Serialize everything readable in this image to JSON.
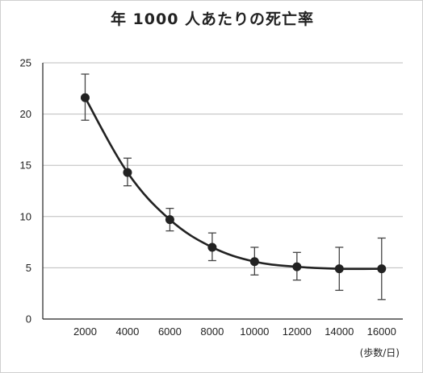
{
  "chart_data": {
    "type": "line",
    "title": "年 1000 人あたりの死亡率",
    "xlabel": "(歩数/日)",
    "ylabel": "",
    "x": [
      2000,
      4000,
      6000,
      8000,
      10000,
      12000,
      14000,
      16000
    ],
    "x_tick_labels": [
      "2000",
      "4000",
      "6000",
      "8000",
      "10000",
      "12000",
      "14000",
      "16000"
    ],
    "xlim": [
      0,
      17000
    ],
    "ylim": [
      0,
      25
    ],
    "y_ticks": [
      0,
      5,
      10,
      15,
      20,
      25
    ],
    "y_tick_labels": [
      "0",
      "5",
      "10",
      "15",
      "20",
      "25"
    ],
    "grid": true,
    "series": [
      {
        "values": [
          21.6,
          14.3,
          9.7,
          7.0,
          5.6,
          5.1,
          4.9,
          4.9
        ],
        "error_low": [
          19.4,
          13.0,
          8.6,
          5.7,
          4.3,
          3.8,
          2.8,
          1.9
        ],
        "error_high": [
          23.9,
          15.7,
          10.8,
          8.4,
          7.0,
          6.5,
          7.0,
          7.9
        ],
        "color": "#222222"
      }
    ]
  }
}
